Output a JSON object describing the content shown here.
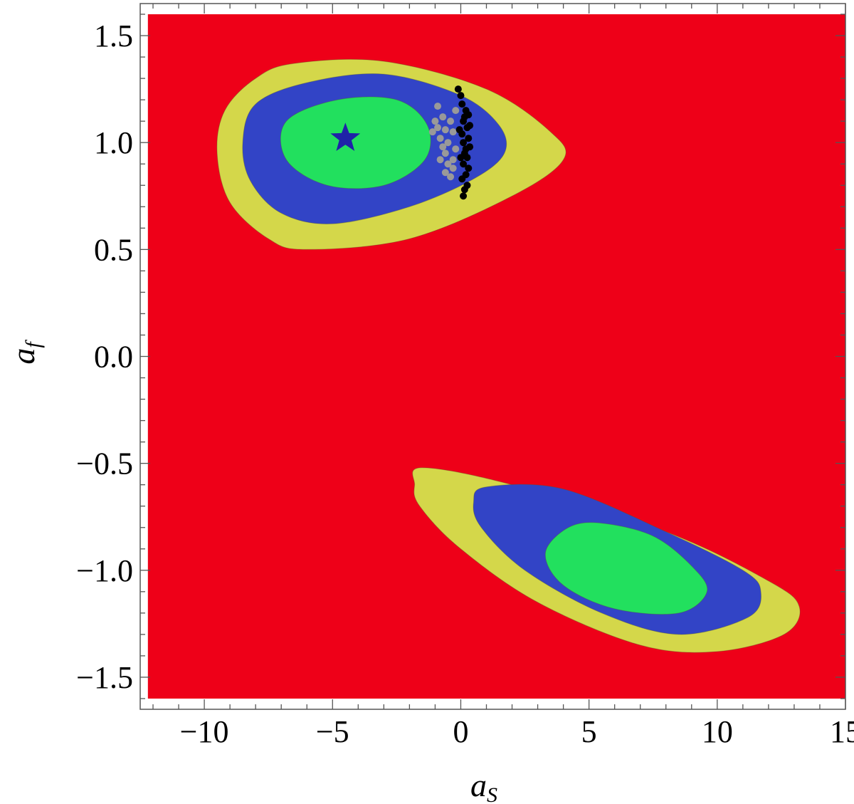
{
  "chart_data": {
    "type": "contour",
    "title": "",
    "xlabel": "a",
    "xlabel_subscript": "S",
    "ylabel": "a",
    "ylabel_subscript": "f",
    "xlim": [
      -12.5,
      15
    ],
    "ylim": [
      -1.65,
      1.65
    ],
    "x_ticks": [
      -10,
      -5,
      0,
      5,
      10,
      15
    ],
    "x_tick_labels": [
      "−10",
      "−5",
      "0",
      "5",
      "10",
      "15"
    ],
    "y_ticks": [
      -1.5,
      -1.0,
      -0.5,
      0.0,
      0.5,
      1.0,
      1.5
    ],
    "y_tick_labels": [
      "−1.5",
      "−1.0",
      "−0.5",
      "0.0",
      "0.5",
      "1.0",
      "1.5"
    ],
    "grid": false,
    "background_region": {
      "x": [
        -12.2,
        15
      ],
      "y": [
        -1.6,
        1.6
      ],
      "color": "#ee0018"
    },
    "regions": [
      {
        "level": "outer",
        "color": "#d4d74a",
        "contours": [
          [
            [
              -6.5,
              1.37
            ],
            [
              -3,
              1.38
            ],
            [
              1,
              1.25
            ],
            [
              3.5,
              1.05
            ],
            [
              4,
              0.92
            ],
            [
              2,
              0.75
            ],
            [
              -2,
              0.55
            ],
            [
              -6,
              0.5
            ],
            [
              -7.5,
              0.55
            ],
            [
              -9,
              0.72
            ],
            [
              -9.5,
              0.95
            ],
            [
              -9.2,
              1.15
            ],
            [
              -8,
              1.3
            ]
          ],
          [
            [
              -1.5,
              -0.52
            ],
            [
              2,
              -0.6
            ],
            [
              8,
              -0.82
            ],
            [
              12,
              -1.05
            ],
            [
              13.2,
              -1.17
            ],
            [
              12.6,
              -1.3
            ],
            [
              10,
              -1.38
            ],
            [
              7,
              -1.35
            ],
            [
              3,
              -1.15
            ],
            [
              0,
              -0.9
            ],
            [
              -1.6,
              -0.7
            ],
            [
              -1.8,
              -0.6
            ]
          ]
        ]
      },
      {
        "level": "middle",
        "color": "#3244c6",
        "contours": [
          [
            [
              -6,
              1.28
            ],
            [
              -3,
              1.32
            ],
            [
              0,
              1.22
            ],
            [
              1.5,
              1.08
            ],
            [
              1.7,
              0.95
            ],
            [
              0.5,
              0.83
            ],
            [
              -2,
              0.7
            ],
            [
              -5,
              0.62
            ],
            [
              -7,
              0.67
            ],
            [
              -8.2,
              0.82
            ],
            [
              -8.5,
              1.0
            ],
            [
              -8,
              1.18
            ]
          ],
          [
            [
              1,
              -0.61
            ],
            [
              4,
              -0.62
            ],
            [
              8,
              -0.82
            ],
            [
              11,
              -1.0
            ],
            [
              11.7,
              -1.1
            ],
            [
              11.2,
              -1.22
            ],
            [
              8.5,
              -1.3
            ],
            [
              5.5,
              -1.2
            ],
            [
              2.5,
              -1.0
            ],
            [
              0.8,
              -0.8
            ],
            [
              0.5,
              -0.68
            ]
          ]
        ]
      },
      {
        "level": "inner",
        "color": "#22e05e",
        "contours": [
          [
            [
              -4.8,
              1.2
            ],
            [
              -2.5,
              1.2
            ],
            [
              -1.3,
              1.08
            ],
            [
              -1.4,
              0.92
            ],
            [
              -3,
              0.8
            ],
            [
              -5.2,
              0.8
            ],
            [
              -6.8,
              0.92
            ],
            [
              -6.8,
              1.1
            ]
          ],
          [
            [
              5.5,
              -0.78
            ],
            [
              7.5,
              -0.84
            ],
            [
              9,
              -0.98
            ],
            [
              9.6,
              -1.1
            ],
            [
              8.5,
              -1.2
            ],
            [
              6,
              -1.18
            ],
            [
              4,
              -1.07
            ],
            [
              3.3,
              -0.92
            ],
            [
              4.2,
              -0.8
            ]
          ]
        ]
      }
    ],
    "scatter_series": [
      {
        "color": "#999999",
        "points": [
          [
            -0.9,
            1.17
          ],
          [
            -1.0,
            1.1
          ],
          [
            -1.1,
            1.05
          ],
          [
            -0.8,
            1.02
          ],
          [
            -0.7,
            0.98
          ],
          [
            -0.6,
            0.95
          ],
          [
            -0.5,
            0.9
          ],
          [
            -0.6,
            0.86
          ],
          [
            -0.4,
            0.84
          ],
          [
            -0.3,
            0.92
          ],
          [
            -0.5,
            1.0
          ],
          [
            -0.9,
            1.07
          ],
          [
            -0.7,
            1.12
          ],
          [
            -0.6,
            1.06
          ],
          [
            -0.3,
            1.05
          ],
          [
            -0.2,
            0.97
          ],
          [
            -0.4,
            1.1
          ],
          [
            -0.2,
            1.15
          ],
          [
            -0.8,
            0.92
          ],
          [
            -0.3,
            0.88
          ]
        ]
      },
      {
        "color": "#000000",
        "points": [
          [
            -0.1,
            1.25
          ],
          [
            0.0,
            1.22
          ],
          [
            0.05,
            1.18
          ],
          [
            0.2,
            1.15
          ],
          [
            0.3,
            1.13
          ],
          [
            0.1,
            1.1
          ],
          [
            0.25,
            1.07
          ],
          [
            0.05,
            1.04
          ],
          [
            0.3,
            1.02
          ],
          [
            0.1,
            1.0
          ],
          [
            0.35,
            0.98
          ],
          [
            0.15,
            0.95
          ],
          [
            0.25,
            0.93
          ],
          [
            0.1,
            0.9
          ],
          [
            0.3,
            0.88
          ],
          [
            0.2,
            0.85
          ],
          [
            0.05,
            0.83
          ],
          [
            0.25,
            0.8
          ],
          [
            0.15,
            0.78
          ],
          [
            0.1,
            0.75
          ],
          [
            0.2,
            0.97
          ],
          [
            0.0,
            0.93
          ],
          [
            0.35,
            1.08
          ],
          [
            0.15,
            1.12
          ],
          [
            -0.05,
            1.06
          ]
        ]
      }
    ],
    "best_fit_marker": {
      "shape": "star",
      "x": -4.5,
      "y": 1.02,
      "color": "#1f22a8"
    }
  }
}
